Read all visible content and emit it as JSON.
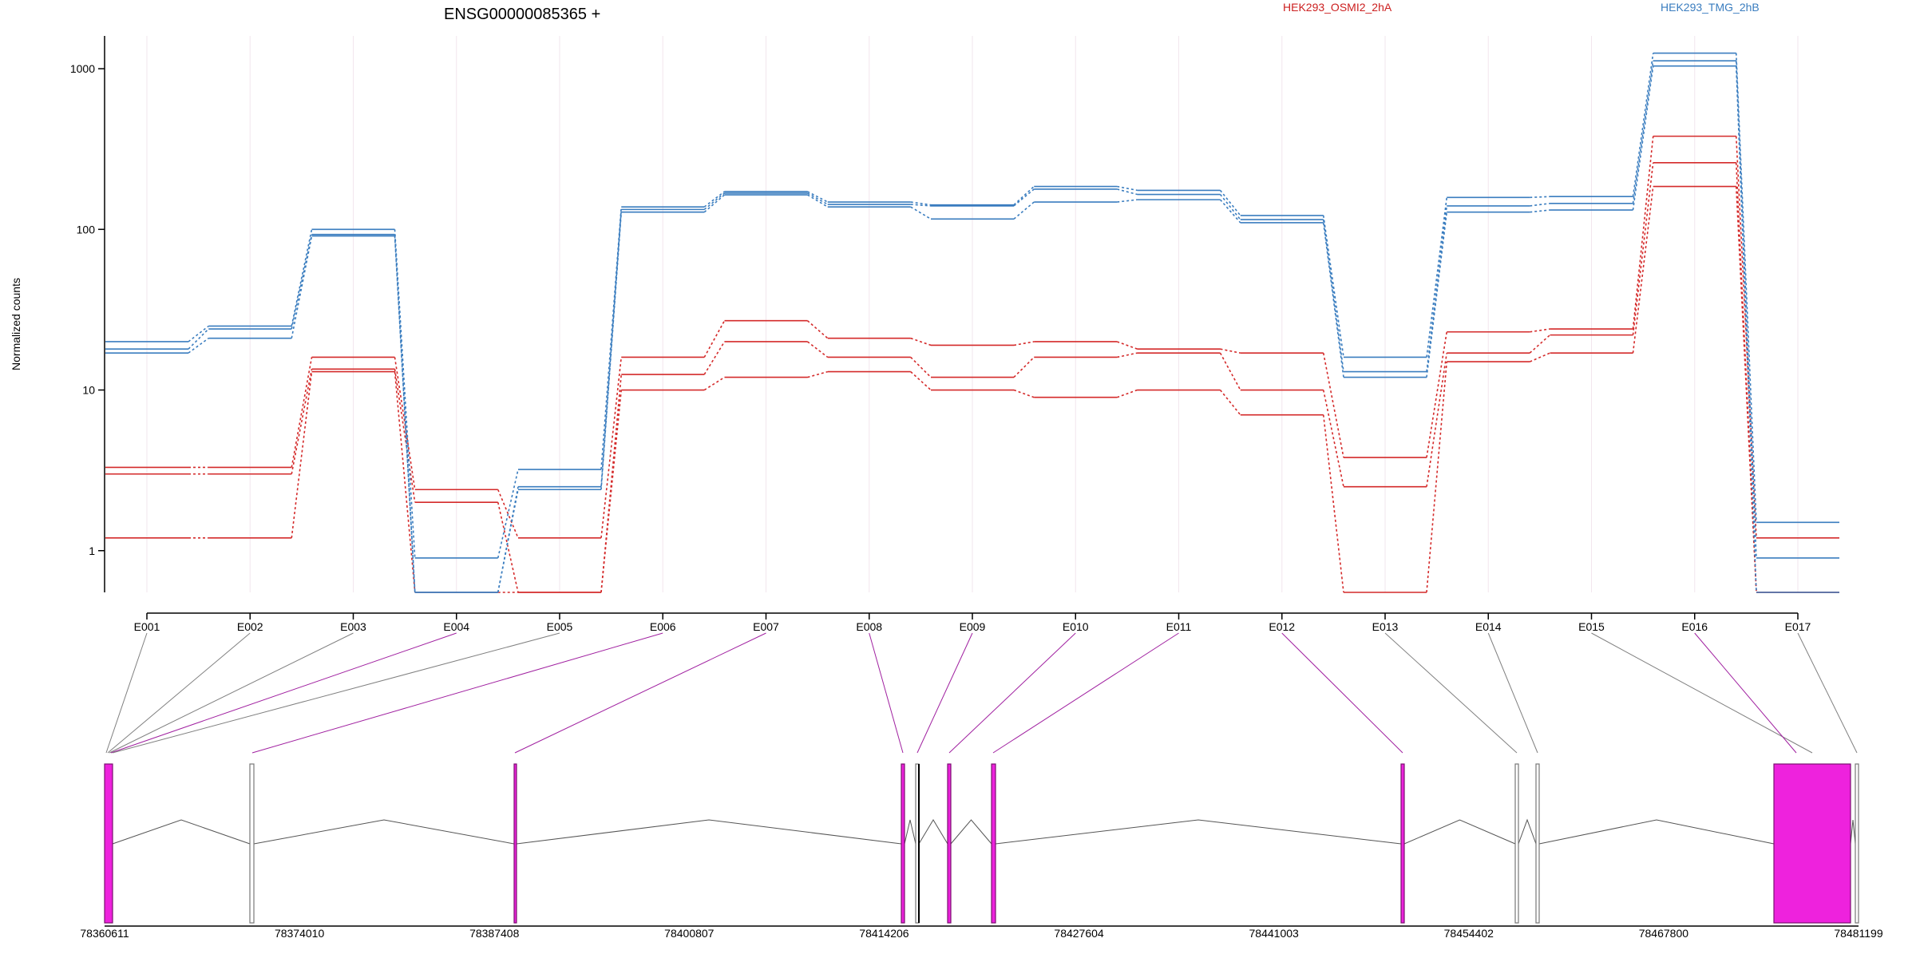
{
  "chart_data": {
    "type": "line",
    "title": "ENSG00000085365 +",
    "ylabel": "Normalized counts",
    "xlabel": "",
    "y_scale": "log",
    "ylim": [
      0.55,
      1600
    ],
    "y_ticks": [
      1,
      10,
      100,
      1000
    ],
    "y_tick_labels": [
      "1",
      "10",
      "100",
      "1000"
    ],
    "x_grid": true,
    "categories": [
      "E001",
      "E002",
      "E003",
      "E004",
      "E005",
      "E006",
      "E007",
      "E008",
      "E009",
      "E010",
      "E011",
      "E012",
      "E013",
      "E014",
      "E015",
      "E016",
      "E017"
    ],
    "legend": [
      {
        "label": "HEK293_OSMI2_2hA",
        "color": "#cc1f1f"
      },
      {
        "label": "HEK293_TMG_2hB",
        "color": "#3a7dbf"
      }
    ],
    "series": [
      {
        "group": "HEK293_OSMI2_2hA",
        "color": "#d42a2a",
        "values": [
          3.3,
          3.3,
          16,
          2.4,
          1.2,
          16,
          27,
          21,
          19,
          20,
          18,
          17,
          3.8,
          23,
          24,
          380,
          1.2
        ]
      },
      {
        "group": "HEK293_OSMI2_2hA",
        "color": "#d42a2a",
        "values": [
          3.0,
          3.0,
          13.5,
          2.0,
          0.55,
          12.5,
          20,
          16,
          12,
          16,
          17,
          10,
          2.5,
          17,
          22,
          260,
          0.55
        ]
      },
      {
        "group": "HEK293_OSMI2_2hA",
        "color": "#d42a2a",
        "values": [
          1.2,
          1.2,
          13,
          0.55,
          0.55,
          10,
          12,
          13,
          10,
          9,
          10,
          7,
          0.55,
          15,
          17,
          185,
          0.55
        ]
      },
      {
        "group": "HEK293_TMG_2hB",
        "color": "#3a7dbf",
        "values": [
          20,
          25,
          100,
          0.9,
          3.2,
          138,
          172,
          148,
          142,
          185,
          175,
          122,
          16,
          158,
          160,
          1250,
          1.5
        ]
      },
      {
        "group": "HEK293_TMG_2hB",
        "color": "#3a7dbf",
        "values": [
          18,
          24,
          93,
          0.55,
          2.5,
          133,
          168,
          143,
          140,
          178,
          165,
          115,
          13,
          140,
          145,
          1120,
          0.9
        ]
      },
      {
        "group": "HEK293_TMG_2hB",
        "color": "#3a7dbf",
        "values": [
          17,
          21,
          91,
          0.55,
          2.4,
          128,
          164,
          138,
          116,
          148,
          153,
          110,
          12,
          128,
          132,
          1040,
          0.55
        ]
      }
    ],
    "gene_model": {
      "coordinate_labels": [
        "78360611",
        "78374010",
        "78387408",
        "78400807",
        "78414206",
        "78427604",
        "78441003",
        "78454402",
        "78467800",
        "78481199"
      ],
      "exon_colors": [
        "#808080",
        "#808080",
        "#808080",
        "#a020a0",
        "#808080",
        "#a020a0",
        "#a020a0",
        "#a020a0",
        "#a020a0",
        "#a020a0",
        "#a020a0",
        "#a020a0",
        "#808080",
        "#808080",
        "#808080",
        "#a020a0",
        "#808080"
      ],
      "exon_fill_colors": {
        "significant": "#ee22dd",
        "box": "#ffffff"
      }
    }
  }
}
